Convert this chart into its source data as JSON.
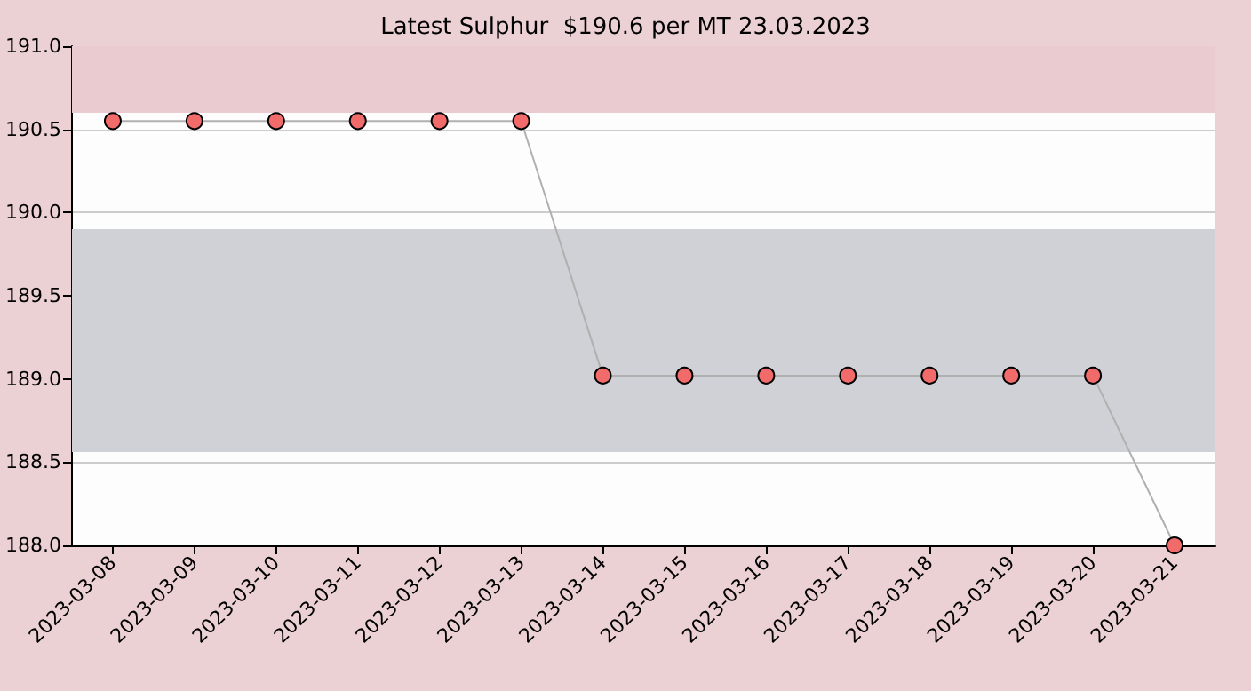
{
  "chart_data": {
    "type": "line",
    "title": "Latest Sulphur  $190.6 per MT 23.03.2023",
    "categories": [
      "2023-03-08",
      "2023-03-09",
      "2023-03-10",
      "2023-03-11",
      "2023-03-12",
      "2023-03-13",
      "2023-03-14",
      "2023-03-15",
      "2023-03-16",
      "2023-03-17",
      "2023-03-18",
      "2023-03-19",
      "2023-03-20",
      "2023-03-21"
    ],
    "series": [
      {
        "color": "#f26b6b",
        "values": [
          190.55,
          190.55,
          190.55,
          190.55,
          190.55,
          190.55,
          189.02,
          189.02,
          189.02,
          189.02,
          189.02,
          189.02,
          189.02,
          188.0
        ]
      }
    ],
    "ylim": [
      188.0,
      191.0
    ],
    "yticks": [
      {
        "value": 188,
        "label": "188.0"
      },
      {
        "value": 188.5,
        "label": "188.5"
      },
      {
        "value": 189,
        "label": "189.0"
      },
      {
        "value": 189.5,
        "label": "189.5"
      },
      {
        "value": 190,
        "label": "190.0"
      },
      {
        "value": 190.5,
        "label": "190.5"
      },
      {
        "value": 191,
        "label": "191.0"
      }
    ],
    "bands": [
      {
        "axis": "y",
        "from": 190.6,
        "to": 191.0,
        "color": "#e9cbd0"
      },
      {
        "axis": "y",
        "from": 188.56,
        "to": 189.9,
        "color": "#d0d1d6"
      }
    ],
    "grid": "y",
    "marker": "circle"
  }
}
